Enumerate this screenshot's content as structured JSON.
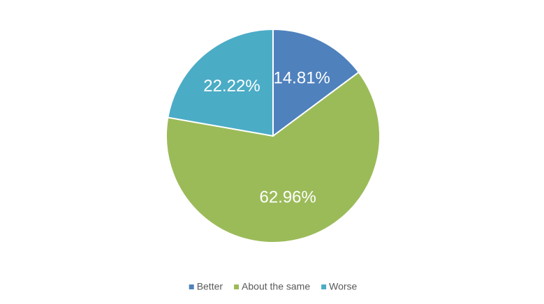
{
  "chart_data": {
    "type": "pie",
    "categories": [
      "Better",
      "About the same",
      "Worse"
    ],
    "values": [
      14.81,
      62.96,
      22.22
    ],
    "value_labels": [
      "14.81%",
      "62.96%",
      "22.22%"
    ],
    "colors": [
      "#4f81bd",
      "#9bbb59",
      "#4bacc6"
    ],
    "legend": "bottom"
  }
}
